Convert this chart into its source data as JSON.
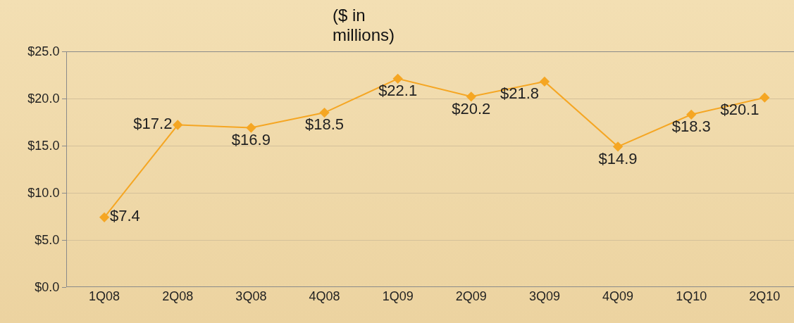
{
  "chart_data": {
    "type": "line",
    "title": "($ in millions)",
    "categories": [
      "1Q08",
      "2Q08",
      "3Q08",
      "4Q08",
      "1Q09",
      "2Q09",
      "3Q09",
      "4Q09",
      "1Q10",
      "2Q10"
    ],
    "values": [
      7.4,
      17.2,
      16.9,
      18.5,
      22.1,
      20.2,
      21.8,
      14.9,
      18.3,
      20.1
    ],
    "value_labels": [
      "$7.4",
      "$17.2",
      "$16.9",
      "$18.5",
      "$22.1",
      "$20.2",
      "$21.8",
      "$14.9",
      "$18.3",
      "$20.1"
    ],
    "color": "#f5a623",
    "marker": "diamond",
    "line_style": "solid",
    "grid": "y",
    "legend": false,
    "ylim": [
      0,
      25
    ],
    "yticks": [
      {
        "value": 0,
        "label": "$0.0"
      },
      {
        "value": 5,
        "label": "$5.0"
      },
      {
        "value": 10,
        "label": "$10.0"
      },
      {
        "value": 15,
        "label": "$15.0"
      },
      {
        "value": 20,
        "label": "$20.0"
      },
      {
        "value": 25,
        "label": "$25.0"
      }
    ]
  }
}
